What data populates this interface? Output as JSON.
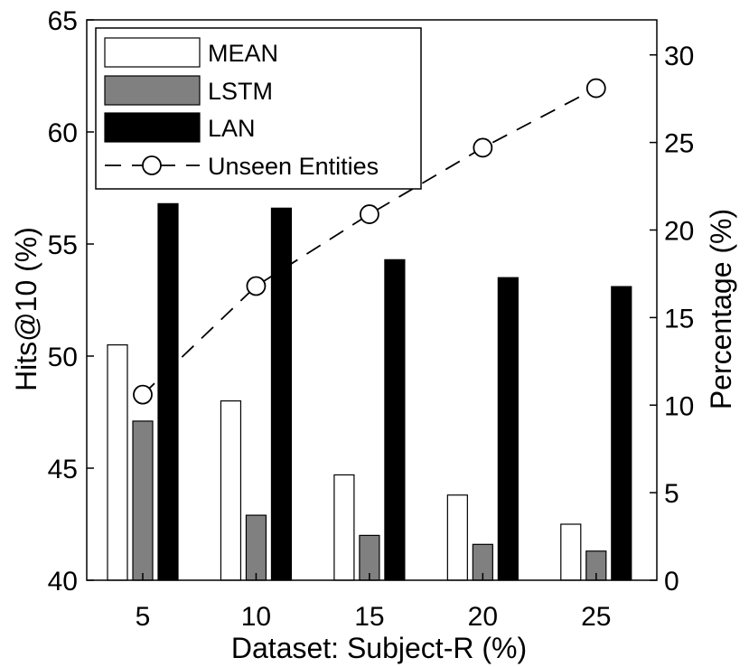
{
  "chart_data": {
    "type": "bar",
    "categories": [
      "5",
      "10",
      "15",
      "20",
      "25"
    ],
    "series": [
      {
        "name": "MEAN",
        "values": [
          50.5,
          48.0,
          44.7,
          43.8,
          42.5
        ],
        "color": "#ffffff",
        "axis": "left"
      },
      {
        "name": "LSTM",
        "values": [
          47.1,
          42.9,
          42.0,
          41.6,
          41.3
        ],
        "color": "#808080",
        "axis": "left"
      },
      {
        "name": "LAN",
        "values": [
          56.8,
          56.6,
          54.3,
          53.5,
          53.1
        ],
        "color": "#000000",
        "axis": "left"
      }
    ],
    "line_series": {
      "name": "Unseen Entities",
      "type": "line",
      "style": "dashed",
      "marker": "circle",
      "values": [
        10.6,
        16.8,
        20.9,
        24.7,
        28.1
      ],
      "axis": "right"
    },
    "xlabel": "Dataset: Subject-R (%)",
    "ylabel_left": "Hits@10 (%)",
    "ylabel_right": "Percentage (%)",
    "ylim_left": [
      40,
      65
    ],
    "ylim_right": [
      0,
      32
    ],
    "yticks_left": [
      "40",
      "45",
      "50",
      "55",
      "60",
      "65"
    ],
    "yticks_right": [
      "0",
      "5",
      "10",
      "15",
      "20",
      "25",
      "30"
    ],
    "legend_position": "top-left",
    "grid": false
  }
}
